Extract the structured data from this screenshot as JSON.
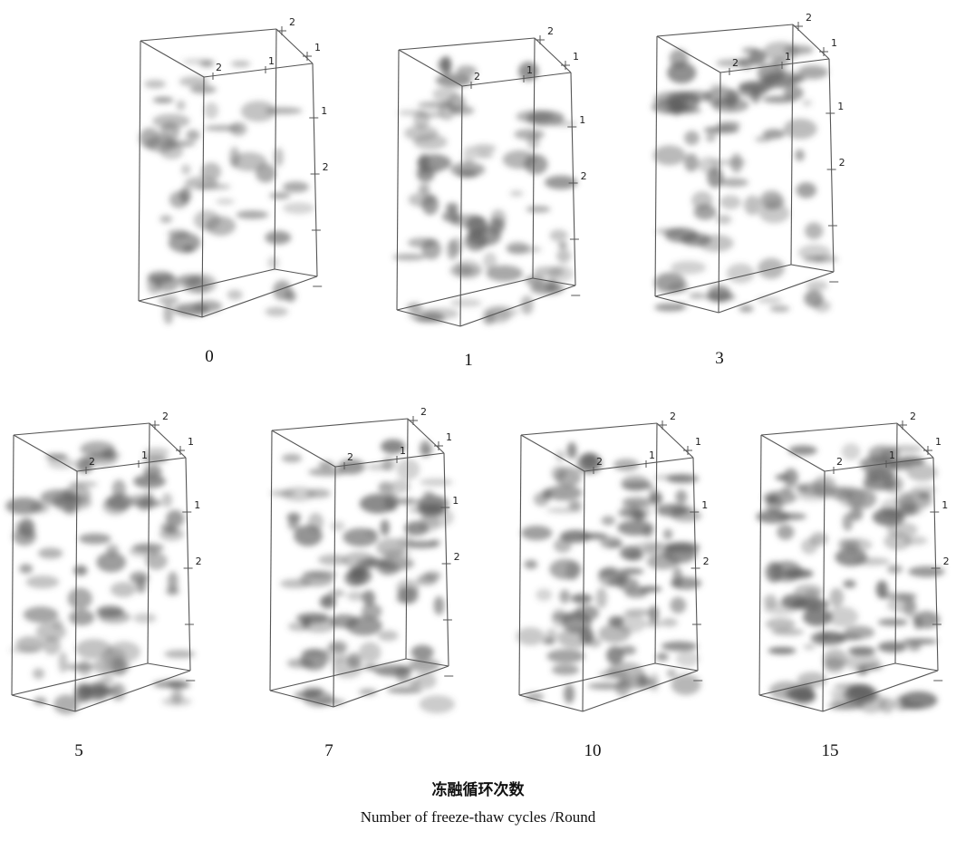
{
  "panels": [
    {
      "cycles": "0",
      "density": 0.35,
      "corner_tick_labels": [
        "2",
        "1"
      ],
      "top_tick_labels": [
        "2",
        "1"
      ],
      "side_tick_labels": [
        "1",
        "2"
      ]
    },
    {
      "cycles": "1",
      "density": 0.55,
      "corner_tick_labels": [
        "2",
        "1"
      ],
      "top_tick_labels": [
        "2",
        "1"
      ],
      "side_tick_labels": [
        "1",
        "2"
      ]
    },
    {
      "cycles": "3",
      "density": 0.6,
      "corner_tick_labels": [
        "2",
        "1"
      ],
      "top_tick_labels": [
        "2",
        "1"
      ],
      "side_tick_labels": [
        "1",
        "2"
      ]
    },
    {
      "cycles": "5",
      "density": 0.65,
      "corner_tick_labels": [
        "2",
        "1"
      ],
      "top_tick_labels": [
        "2",
        "1"
      ],
      "side_tick_labels": [
        "1",
        "2"
      ]
    },
    {
      "cycles": "7",
      "density": 0.75,
      "corner_tick_labels": [
        "2",
        "1"
      ],
      "top_tick_labels": [
        "2",
        "1"
      ],
      "side_tick_labels": [
        "1",
        "2"
      ]
    },
    {
      "cycles": "10",
      "density": 0.8,
      "corner_tick_labels": [
        "2",
        "1"
      ],
      "top_tick_labels": [
        "2",
        "1"
      ],
      "side_tick_labels": [
        "1",
        "2"
      ]
    },
    {
      "cycles": "15",
      "density": 0.95,
      "corner_tick_labels": [
        "2",
        "1"
      ],
      "top_tick_labels": [
        "2",
        "1"
      ],
      "side_tick_labels": [
        "1",
        "2"
      ]
    }
  ],
  "caption": {
    "chinese": "冻融循环次数",
    "english": "Number of freeze-thaw cycles /Round"
  },
  "colors": {
    "frame": "#555555",
    "blob": "#5a5a5a",
    "background": "#ffffff"
  }
}
